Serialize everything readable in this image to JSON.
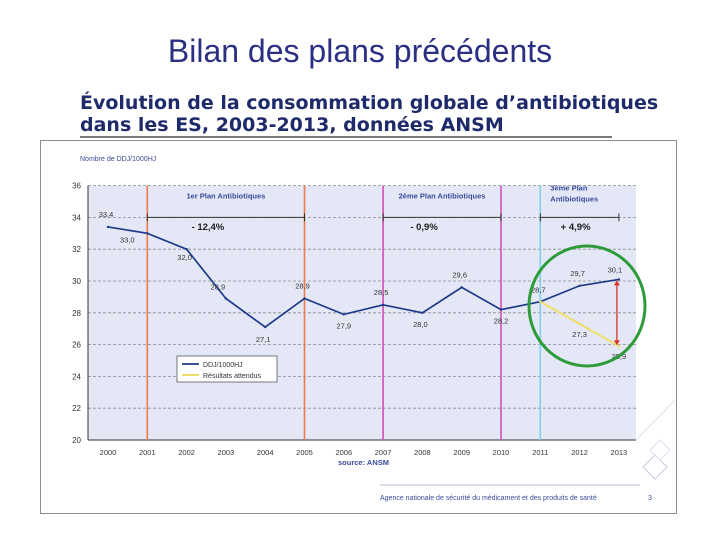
{
  "slide": {
    "title": "Bilan des plans précédents"
  },
  "heading": {
    "line1": "Évolution de la consommation globale d’antibiotiques",
    "line2": "dans les ES, 2003-2013, données ANSM"
  },
  "chart_data": {
    "type": "line",
    "ylabel": "Nombre de DDJ/1000HJ",
    "ylim": [
      20,
      36
    ],
    "yticks": [
      20,
      22,
      24,
      26,
      28,
      30,
      32,
      34,
      36
    ],
    "categories": [
      "2000",
      "2001",
      "2002",
      "2003",
      "2004",
      "2005",
      "2006",
      "2007",
      "2008",
      "2009",
      "2010",
      "2011",
      "2012",
      "2013"
    ],
    "series": [
      {
        "name": "DDJ/1000HJ",
        "color": "#1f3a8a",
        "points": [
          [
            2000,
            33.4
          ],
          [
            2001,
            33.0
          ],
          [
            2002,
            32.0
          ],
          [
            2003,
            28.9
          ],
          [
            2004,
            27.1
          ],
          [
            2005,
            28.9
          ],
          [
            2006,
            27.9
          ],
          [
            2007,
            28.5
          ],
          [
            2008,
            28.0
          ],
          [
            2009,
            29.6
          ],
          [
            2010,
            28.2
          ],
          [
            2011,
            28.7
          ],
          [
            2012,
            29.7
          ],
          [
            2013,
            30.1
          ]
        ],
        "labels": [
          "33,4",
          "33,0",
          "32,0",
          "28,9",
          "27,1",
          "28,9",
          "27,9",
          "28,5",
          "28,0",
          "29,6",
          "28,2",
          "28,7",
          "29,7",
          "30,1"
        ]
      },
      {
        "name": "Résultats attendus",
        "color": "#f0de6a",
        "points": [
          [
            2011,
            28.7
          ],
          [
            2012,
            27.3
          ],
          [
            2013,
            25.9
          ]
        ],
        "labels": [
          "",
          "27,3",
          "25,9"
        ]
      }
    ],
    "plans": [
      {
        "label": "1er Plan Antibiotiques",
        "start": 2001,
        "end": 2005,
        "change": "- 12,4%",
        "color": "#ef7a4a"
      },
      {
        "label": "2ème Plan Antibiotiques",
        "start": 2007,
        "end": 2010,
        "change": "- 0,9%",
        "color": "#d24fb8"
      },
      {
        "label": "3ème Plan Antibiotiques",
        "start": 2011,
        "end": 2013,
        "change": "+ 4,9%",
        "color": "#7fd0ea"
      }
    ],
    "source": "source: ANSM"
  },
  "footer": {
    "agency": "Agence nationale de sécurité du médicament et des produits de santé",
    "page": "3"
  }
}
